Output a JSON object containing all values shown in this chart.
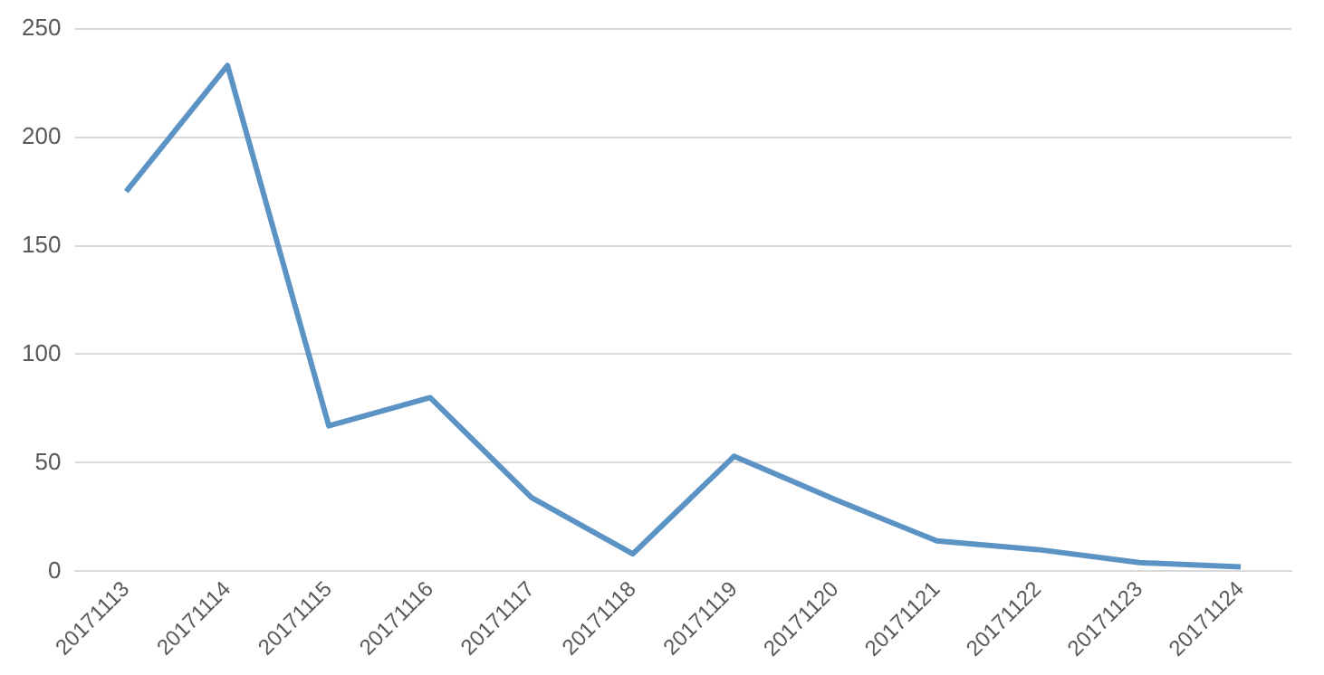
{
  "chart_data": {
    "type": "line",
    "categories": [
      "20171113",
      "20171114",
      "20171115",
      "20171116",
      "20171117",
      "20171118",
      "20171119",
      "20171120",
      "20171121",
      "20171122",
      "20171123",
      "20171124"
    ],
    "series": [
      {
        "color": "#5b93c5",
        "values": [
          175,
          233,
          67,
          80,
          34,
          8,
          53,
          33,
          14,
          10,
          4,
          2
        ]
      }
    ],
    "ylim": [
      0,
      250
    ],
    "yticks": [
      0,
      50,
      100,
      150,
      200,
      250
    ],
    "grid": "y",
    "legend": false,
    "marker": "none",
    "line_style": "solid"
  }
}
